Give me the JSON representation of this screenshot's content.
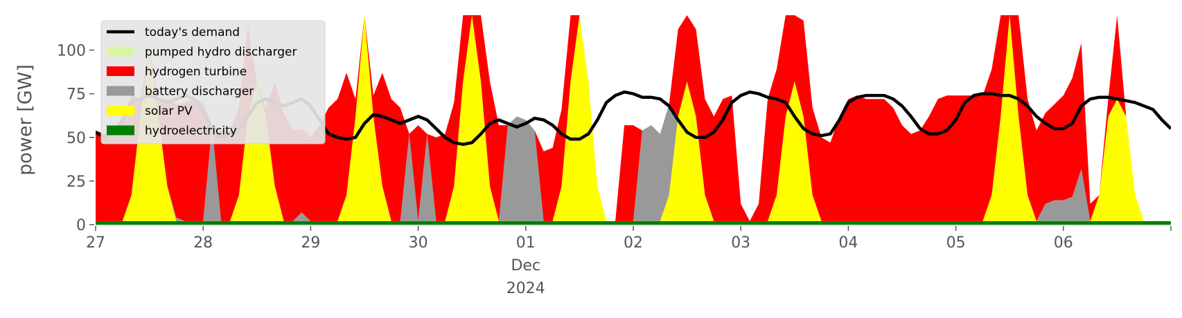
{
  "chart_data": {
    "type": "area",
    "ylabel": "power [GW]",
    "ylim": [
      0,
      120
    ],
    "yticks": [
      0,
      25,
      50,
      75,
      100
    ],
    "xlim": [
      "2024-11-27",
      "2024-12-07"
    ],
    "xticks": [
      {
        "label": "27",
        "sub": []
      },
      {
        "label": "28",
        "sub": []
      },
      {
        "label": "29",
        "sub": []
      },
      {
        "label": "30",
        "sub": []
      },
      {
        "label": "01",
        "sub": [
          "Dec",
          "2024"
        ]
      },
      {
        "label": "02",
        "sub": []
      },
      {
        "label": "03",
        "sub": []
      },
      {
        "label": "04",
        "sub": []
      },
      {
        "label": "05",
        "sub": []
      },
      {
        "label": "06",
        "sub": []
      }
    ],
    "legend_position": "top-left",
    "x_step_hours": 2,
    "series": [
      {
        "name": "hydroelectricity",
        "color": "#008000",
        "values": [
          2,
          2,
          2,
          2,
          2,
          2,
          2,
          2,
          2,
          2,
          2,
          2,
          2,
          2,
          2,
          2,
          2,
          2,
          2,
          2,
          2,
          2,
          2,
          2,
          2,
          2,
          2,
          2,
          2,
          2,
          2,
          2,
          2,
          2,
          2,
          2,
          2,
          2,
          2,
          2,
          2,
          2,
          2,
          2,
          2,
          2,
          2,
          2,
          2,
          2,
          2,
          2,
          2,
          2,
          2,
          2,
          2,
          2,
          2,
          2,
          2,
          2,
          2,
          2,
          2,
          2,
          2,
          2,
          2,
          2,
          2,
          2,
          2,
          2,
          2,
          2,
          2,
          2,
          2,
          2,
          2,
          2,
          2,
          2,
          2,
          2,
          2,
          2,
          2,
          2,
          2,
          2,
          2,
          2,
          2,
          2,
          2,
          2,
          2,
          2,
          2,
          2,
          2,
          2,
          2,
          2,
          2,
          2,
          2,
          2,
          2,
          2,
          2,
          2,
          2,
          2,
          2,
          2,
          2,
          2,
          2
        ]
      },
      {
        "name": "solar PV",
        "color": "#ffff00",
        "values": [
          0,
          0,
          0,
          0,
          15,
          60,
          100,
          60,
          20,
          0,
          0,
          0,
          0,
          0,
          0,
          0,
          15,
          60,
          80,
          60,
          20,
          0,
          0,
          0,
          0,
          0,
          0,
          0,
          15,
          60,
          130,
          60,
          20,
          0,
          0,
          0,
          0,
          0,
          0,
          0,
          20,
          80,
          150,
          80,
          20,
          0,
          0,
          0,
          0,
          0,
          0,
          0,
          20,
          80,
          150,
          80,
          20,
          0,
          0,
          0,
          0,
          0,
          0,
          0,
          15,
          60,
          80,
          60,
          15,
          0,
          0,
          0,
          0,
          0,
          0,
          0,
          15,
          60,
          80,
          60,
          15,
          0,
          0,
          0,
          0,
          0,
          0,
          0,
          0,
          0,
          0,
          0,
          0,
          0,
          0,
          0,
          0,
          0,
          0,
          0,
          15,
          60,
          140,
          60,
          15,
          0,
          0,
          0,
          0,
          0,
          0,
          0,
          15,
          60,
          70,
          60,
          15,
          0,
          0,
          0,
          0
        ]
      },
      {
        "name": "battery discharger",
        "color": "#999999",
        "values": [
          0,
          0,
          0,
          0,
          0,
          0,
          0,
          0,
          0,
          2,
          0,
          0,
          0,
          55,
          0,
          0,
          0,
          0,
          0,
          0,
          0,
          0,
          0,
          5,
          0,
          0,
          0,
          0,
          0,
          0,
          0,
          0,
          0,
          0,
          0,
          50,
          0,
          50,
          0,
          0,
          0,
          0,
          0,
          0,
          0,
          0,
          55,
          60,
          58,
          52,
          0,
          0,
          0,
          0,
          0,
          0,
          0,
          0,
          0,
          0,
          0,
          52,
          55,
          50,
          52,
          0,
          0,
          0,
          0,
          0,
          0,
          0,
          0,
          0,
          0,
          0,
          0,
          0,
          0,
          0,
          0,
          0,
          0,
          0,
          0,
          0,
          0,
          0,
          0,
          0,
          0,
          0,
          0,
          0,
          0,
          0,
          0,
          0,
          0,
          0,
          0,
          0,
          0,
          0,
          0,
          0,
          10,
          12,
          12,
          14,
          30,
          0,
          0,
          0,
          0,
          0,
          0,
          0,
          0,
          0,
          0
        ]
      },
      {
        "name": "hydrogen turbine",
        "color": "#ff0000",
        "values": [
          52,
          50,
          52,
          60,
          57,
          10,
          0,
          8,
          50,
          65,
          68,
          70,
          68,
          0,
          52,
          52,
          50,
          52,
          0,
          5,
          60,
          62,
          52,
          48,
          48,
          55,
          65,
          70,
          70,
          10,
          0,
          12,
          65,
          70,
          65,
          0,
          55,
          0,
          48,
          50,
          48,
          50,
          53,
          58,
          60,
          55,
          0,
          0,
          0,
          0,
          40,
          42,
          44,
          46,
          0,
          0,
          0,
          0,
          0,
          55,
          55,
          0,
          0,
          0,
          0,
          50,
          48,
          50,
          55,
          60,
          70,
          72,
          10,
          0,
          10,
          70,
          72,
          70,
          68,
          55,
          50,
          48,
          45,
          60,
          70,
          72,
          70,
          70,
          70,
          65,
          55,
          50,
          52,
          60,
          70,
          72,
          72,
          72,
          72,
          72,
          72,
          70,
          68,
          65,
          55,
          52,
          52,
          55,
          60,
          68,
          72,
          10,
          0,
          10,
          55,
          0,
          0,
          0,
          0,
          0,
          0
        ]
      },
      {
        "name": "pumped hydro discharger",
        "color": "#dbf5a6",
        "values": [
          0,
          0,
          0,
          0,
          0,
          0,
          0,
          0,
          0,
          0,
          0,
          0,
          0,
          0,
          0,
          0,
          0,
          0,
          0,
          0,
          0,
          0,
          0,
          0,
          0,
          0,
          0,
          0,
          0,
          0,
          0,
          0,
          0,
          0,
          0,
          0,
          0,
          0,
          0,
          0,
          0,
          0,
          0,
          0,
          0,
          0,
          0,
          0,
          0,
          0,
          0,
          0,
          0,
          0,
          0,
          0,
          0,
          0,
          0,
          0,
          0,
          0,
          0,
          0,
          0,
          0,
          0,
          0,
          0,
          0,
          0,
          0,
          0,
          0,
          0,
          0,
          0,
          0,
          0,
          0,
          0,
          0,
          0,
          0,
          0,
          0,
          0,
          0,
          0,
          0,
          0,
          0,
          0,
          0,
          0,
          0,
          0,
          0,
          0,
          0,
          0,
          0,
          0,
          0,
          0,
          0,
          0,
          0,
          0,
          0,
          0,
          0,
          0,
          0,
          0,
          0,
          0,
          0,
          0,
          0,
          0
        ]
      },
      {
        "name": "today's demand",
        "color": "#000000",
        "line": true,
        "values": [
          53,
          50,
          52,
          60,
          70,
          72,
          74,
          72,
          70,
          72,
          74,
          72,
          65,
          55,
          50,
          52,
          55,
          62,
          70,
          72,
          70,
          68,
          70,
          72,
          68,
          60,
          52,
          50,
          49,
          50,
          58,
          63,
          62,
          60,
          58,
          60,
          62,
          60,
          55,
          50,
          47,
          46,
          47,
          52,
          58,
          60,
          58,
          56,
          58,
          61,
          60,
          57,
          52,
          49,
          49,
          52,
          60,
          70,
          74,
          76,
          75,
          73,
          73,
          72,
          68,
          60,
          53,
          50,
          50,
          53,
          60,
          70,
          74,
          76,
          75,
          73,
          72,
          70,
          62,
          55,
          52,
          51,
          52,
          60,
          70,
          73,
          74,
          74,
          74,
          72,
          68,
          62,
          55,
          52,
          52,
          54,
          60,
          70,
          74,
          75,
          75,
          74,
          74,
          72,
          68,
          62,
          58,
          55,
          55,
          58,
          68,
          72,
          73,
          73,
          72,
          71,
          70,
          68,
          66,
          60,
          55
        ]
      }
    ]
  }
}
